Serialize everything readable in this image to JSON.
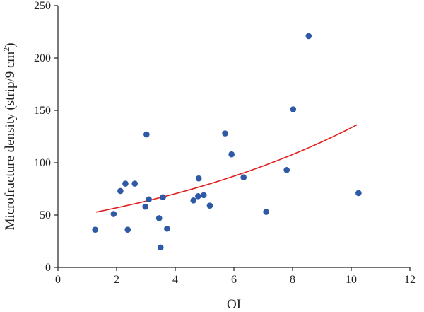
{
  "chart_data": {
    "type": "scatter",
    "title": "",
    "xlabel": "OI",
    "ylabel_prefix": "Microfracture density (strip/9 cm",
    "ylabel_sup": "2",
    "ylabel_suffix": ")",
    "xlim": [
      0,
      12
    ],
    "ylim": [
      0,
      250
    ],
    "xticks": [
      0,
      2,
      4,
      6,
      8,
      10,
      12
    ],
    "yticks": [
      0,
      50,
      100,
      150,
      200,
      250
    ],
    "grid": false,
    "point_color": "#2e59a6",
    "fit_color": "#e02020",
    "points": [
      {
        "x": 1.27,
        "y": 36
      },
      {
        "x": 1.9,
        "y": 51
      },
      {
        "x": 2.13,
        "y": 73
      },
      {
        "x": 2.3,
        "y": 80
      },
      {
        "x": 2.38,
        "y": 36
      },
      {
        "x": 2.62,
        "y": 80
      },
      {
        "x": 2.98,
        "y": 58
      },
      {
        "x": 3.02,
        "y": 127
      },
      {
        "x": 3.1,
        "y": 65
      },
      {
        "x": 3.45,
        "y": 47
      },
      {
        "x": 3.5,
        "y": 19
      },
      {
        "x": 3.58,
        "y": 67
      },
      {
        "x": 3.72,
        "y": 37
      },
      {
        "x": 4.62,
        "y": 64
      },
      {
        "x": 4.78,
        "y": 68
      },
      {
        "x": 4.8,
        "y": 85
      },
      {
        "x": 4.97,
        "y": 69
      },
      {
        "x": 5.18,
        "y": 59
      },
      {
        "x": 5.7,
        "y": 128
      },
      {
        "x": 5.92,
        "y": 108
      },
      {
        "x": 6.33,
        "y": 86
      },
      {
        "x": 7.1,
        "y": 53
      },
      {
        "x": 7.8,
        "y": 93
      },
      {
        "x": 8.02,
        "y": 151
      },
      {
        "x": 8.55,
        "y": 221
      },
      {
        "x": 10.25,
        "y": 71
      }
    ],
    "fit": {
      "type": "exponential",
      "a": 46.0,
      "b": 0.1065,
      "x_range": [
        1.3,
        10.2
      ]
    }
  }
}
